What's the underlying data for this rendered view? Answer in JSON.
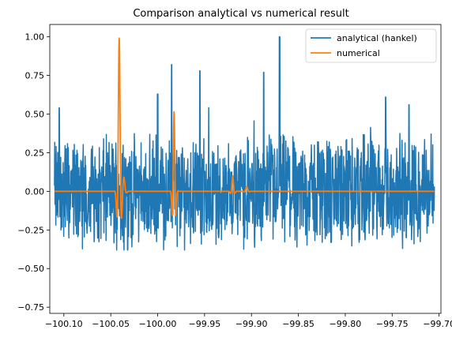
{
  "chart_data": {
    "type": "line",
    "title": "Comparison analytical vs numerical result",
    "xlabel": "",
    "ylabel": "",
    "xlim": [
      -100.115,
      -99.698
    ],
    "ylim": [
      -0.79,
      1.08
    ],
    "xticks": [
      -100.1,
      -100.05,
      -100.0,
      -99.95,
      -99.9,
      -99.85,
      -99.8,
      -99.75,
      -99.7
    ],
    "xtick_labels": [
      "−100.10",
      "−100.05",
      "−100.00",
      "−99.95",
      "−99.90",
      "−99.85",
      "−99.80",
      "−99.75",
      "−99.70"
    ],
    "yticks": [
      -0.75,
      -0.5,
      -0.25,
      0.0,
      0.25,
      0.5,
      0.75,
      1.0
    ],
    "ytick_labels": [
      "−0.75",
      "−0.50",
      "−0.25",
      "0.00",
      "0.25",
      "0.50",
      "0.75",
      "1.00"
    ],
    "legend_position": "upper right",
    "series": [
      {
        "name": "analytical (hankel)",
        "color": "#1f77b4",
        "description": "dense noisy oscillation between about -0.38 and 1.00",
        "x_range": [
          -100.11,
          -99.705
        ],
        "peaks": [
          {
            "x": -100.105,
            "y": 0.54
          },
          {
            "x": -100.0,
            "y": 0.63
          },
          {
            "x": -99.985,
            "y": 0.82
          },
          {
            "x": -99.955,
            "y": 0.78
          },
          {
            "x": -99.887,
            "y": 0.77
          },
          {
            "x": -99.87,
            "y": 1.0
          },
          {
            "x": -99.815,
            "y": 0.98
          },
          {
            "x": -99.757,
            "y": 0.61
          },
          {
            "x": -99.732,
            "y": 0.56
          },
          {
            "x": -100.032,
            "y": -0.38
          },
          {
            "x": -99.935,
            "y": -0.3
          },
          {
            "x": -99.815,
            "y": -0.33
          },
          {
            "x": -99.735,
            "y": -0.3
          }
        ]
      },
      {
        "name": "numerical",
        "color": "#ff7f0e",
        "description": "near zero with sharp oscillatory pulses",
        "x_range": [
          -100.11,
          -99.705
        ],
        "pulses": [
          {
            "center": -100.041,
            "amp_pos": 1.0,
            "amp_neg": -0.74,
            "width": 0.0022
          },
          {
            "center": -100.036,
            "amp_pos": 0.09,
            "amp_neg": -0.04,
            "width": 0.0025
          },
          {
            "center": -99.9825,
            "amp_pos": 0.52,
            "amp_neg": -0.7,
            "width": 0.0018
          },
          {
            "center": -99.92,
            "amp_pos": 0.1,
            "amp_neg": -0.06,
            "width": 0.002
          },
          {
            "center": -99.905,
            "amp_pos": 0.03,
            "amp_neg": -0.01,
            "width": 0.0025
          }
        ]
      }
    ]
  }
}
